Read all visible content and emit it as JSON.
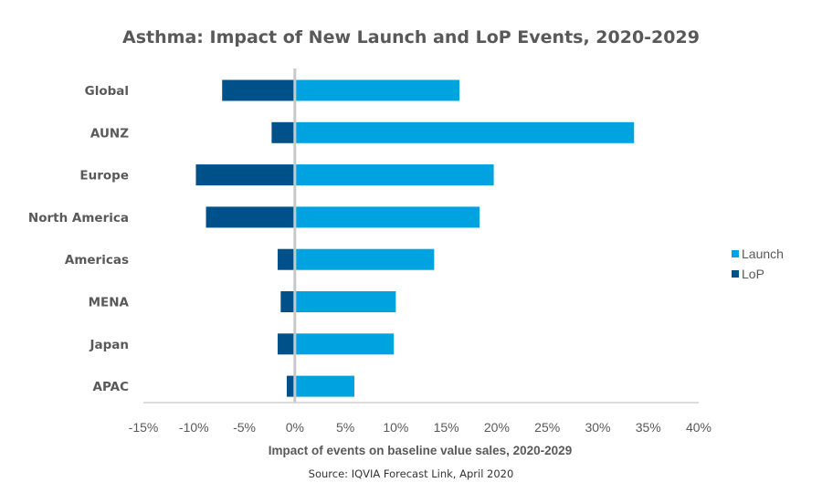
{
  "source": "Source: IQVIA Forecast Link, April 2020",
  "chart_data": {
    "type": "bar",
    "orientation": "horizontal",
    "title": "Asthma: Impact of New Launch and LoP Events, 2020-2029",
    "xlabel": "Impact of events on baseline value sales, 2020-2029",
    "ylabel": "",
    "xlim": [
      -15,
      40
    ],
    "xticks": [
      -15,
      -10,
      -5,
      0,
      5,
      10,
      15,
      20,
      25,
      30,
      35,
      40
    ],
    "tick_format": "percent",
    "categories": [
      "Global",
      "AUNZ",
      "Europe",
      "North America",
      "Americas",
      "MENA",
      "Japan",
      "APAC"
    ],
    "series": [
      {
        "name": "Launch",
        "color": "#00a3e0",
        "values": [
          16.3,
          33.6,
          19.7,
          18.3,
          13.8,
          10.0,
          9.8,
          5.9
        ]
      },
      {
        "name": "LoP",
        "color": "#00508a",
        "values": [
          -7.2,
          -2.3,
          -9.8,
          -8.8,
          -1.7,
          -1.4,
          -1.7,
          -0.8
        ]
      }
    ],
    "grid": false,
    "legend_position": "right"
  }
}
